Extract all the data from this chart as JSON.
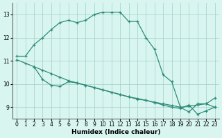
{
  "line1_x": [
    0,
    1,
    2,
    3,
    4,
    5,
    6,
    7,
    8,
    9,
    10,
    11,
    12,
    13,
    14,
    15,
    16,
    17,
    18,
    19,
    20,
    21,
    22,
    23
  ],
  "line1_y": [
    11.2,
    11.2,
    11.7,
    12.0,
    12.35,
    12.65,
    12.75,
    12.65,
    12.75,
    13.0,
    13.1,
    13.1,
    13.1,
    12.7,
    12.7,
    12.0,
    11.5,
    10.4,
    10.1,
    9.0,
    8.8,
    9.15,
    9.15,
    9.0
  ],
  "line2_x": [
    2,
    3,
    4,
    5,
    6,
    7,
    8,
    9,
    10,
    11,
    12,
    13,
    14,
    15,
    16,
    17,
    18,
    19,
    20,
    21,
    22,
    23
  ],
  "line2_y": [
    10.75,
    10.2,
    9.95,
    9.9,
    10.1,
    10.05,
    9.95,
    9.85,
    9.75,
    9.65,
    9.55,
    9.45,
    9.35,
    9.3,
    9.2,
    9.1,
    9.0,
    8.95,
    9.1,
    8.7,
    8.85,
    9.0
  ],
  "line3_x": [
    0,
    1,
    2,
    3,
    4,
    5,
    6,
    7,
    8,
    9,
    10,
    11,
    12,
    13,
    14,
    15,
    16,
    17,
    18,
    19,
    20,
    21,
    22,
    23
  ],
  "line3_y": [
    11.05,
    10.9,
    10.75,
    10.6,
    10.45,
    10.3,
    10.15,
    10.05,
    9.95,
    9.85,
    9.75,
    9.65,
    9.55,
    9.45,
    9.38,
    9.3,
    9.22,
    9.15,
    9.08,
    9.0,
    9.05,
    9.1,
    9.15,
    9.4
  ],
  "line_color": "#2e8b7a",
  "bg_color": "#d8f5f0",
  "grid_color": "#a0cfc8",
  "xlabel": "Humidex (Indice chaleur)",
  "ylim": [
    8.5,
    13.5
  ],
  "xlim": [
    -0.5,
    23.5
  ],
  "yticks": [
    9,
    10,
    11,
    12,
    13
  ],
  "xticks": [
    0,
    1,
    2,
    3,
    4,
    5,
    6,
    7,
    8,
    9,
    10,
    11,
    12,
    13,
    14,
    15,
    16,
    17,
    18,
    19,
    20,
    21,
    22,
    23
  ]
}
